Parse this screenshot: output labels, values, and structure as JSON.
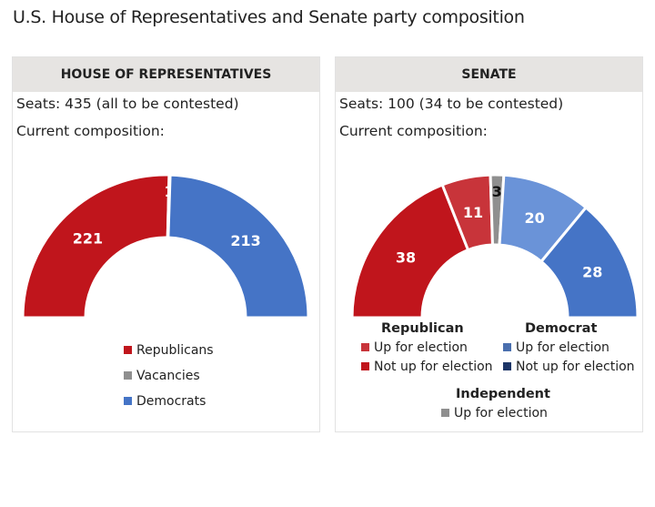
{
  "title": "U.S. House of Representatives and Senate party composition",
  "colors": {
    "rep": "#c0151c",
    "rep_up": "#c8343a",
    "ind": "#8f8f8f",
    "dem_up": "#6a93d8",
    "dem": "#4574c6"
  },
  "chart_data": [
    {
      "type": "pie",
      "title": "HOUSE OF REPRESENTATIVES",
      "seats": "Seats: 435 (all to be contested)",
      "subtitle": "Current composition:",
      "slices": [
        {
          "label": "Republicans",
          "value": 221,
          "color": "#c0151c"
        },
        {
          "label": "Vacancies",
          "value": 1,
          "color": "#8f8f8f"
        },
        {
          "label": "Democrats",
          "value": 213,
          "color": "#4574c6"
        }
      ],
      "legend": [
        "Republicans",
        "Vacancies",
        "Democrats"
      ]
    },
    {
      "type": "pie",
      "title": "SENATE",
      "seats": "Seats: 100 (34 to be contested)",
      "subtitle": "Current composition:",
      "slices": [
        {
          "party": "Republican",
          "status": "Not up for election",
          "value": 38,
          "color": "#c0151c"
        },
        {
          "party": "Republican",
          "status": "Up for election",
          "value": 11,
          "color": "#c8343a"
        },
        {
          "party": "Independent",
          "status": "Up for election",
          "value": 3,
          "color": "#8f8f8f"
        },
        {
          "party": "Democrat",
          "status": "Up for election",
          "value": 20,
          "color": "#6a93d8"
        },
        {
          "party": "Democrat",
          "status": "Not up for election",
          "value": 28,
          "color": "#4574c6"
        }
      ],
      "legend": {
        "republican": {
          "heading": "Republican",
          "items": [
            "Up for election",
            "Not up for election"
          ]
        },
        "democrat": {
          "heading": "Democrat",
          "items": [
            "Up for election",
            "Not up for election"
          ]
        },
        "independent": {
          "heading": "Independent",
          "items": [
            "Up for election"
          ]
        }
      }
    }
  ]
}
